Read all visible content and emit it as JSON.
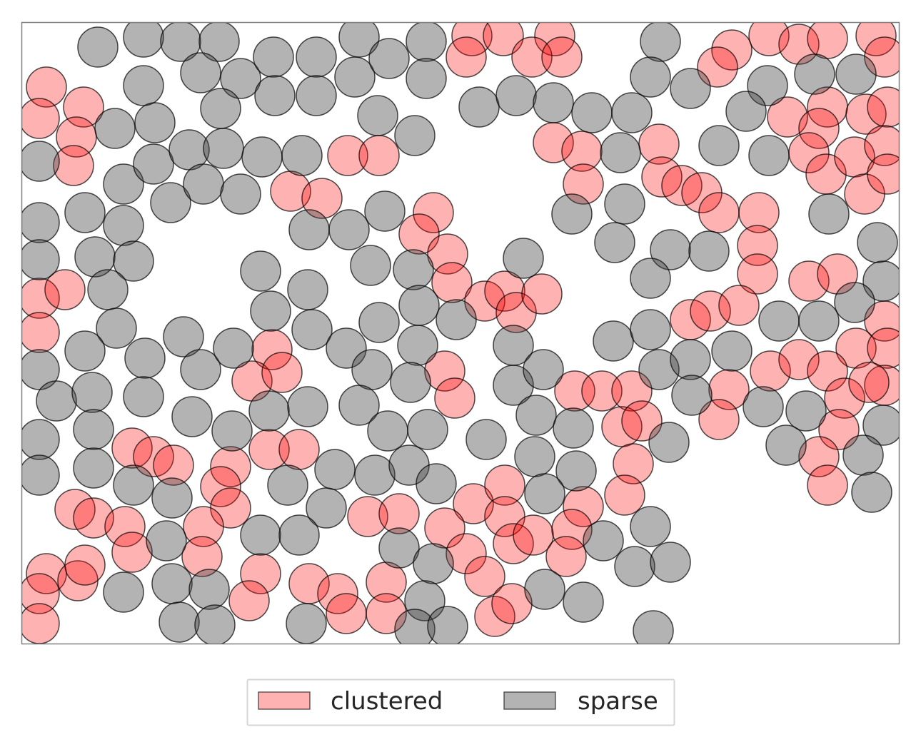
{
  "chart_data": {
    "type": "scatter",
    "xlim": [
      0,
      1228
    ],
    "ylim": [
      0,
      870
    ],
    "y_inverted": true,
    "axes_visible": false,
    "grid": false,
    "marker_radius": 28,
    "legend": {
      "placement": "bottom-center",
      "columns": 2
    },
    "series": [
      {
        "name": "clustered",
        "color": "#ff0000",
        "alpha": 0.3,
        "points": [
          [
            630,
            18
          ],
          [
            674,
            18
          ],
          [
            746,
            18
          ],
          [
            1046,
            18
          ],
          [
            1196,
            18
          ],
          [
            622,
            48
          ],
          [
            714,
            48
          ],
          [
            756,
            48
          ],
          [
            1088,
            30
          ],
          [
            1128,
            22
          ],
          [
            994,
            38
          ],
          [
            974,
            62
          ],
          [
            1208,
            48
          ],
          [
            34,
            90
          ],
          [
            86,
            118
          ],
          [
            24,
            134
          ],
          [
            76,
            160
          ],
          [
            72,
            200
          ],
          [
            1072,
            132
          ],
          [
            1128,
            118
          ],
          [
            1116,
            148
          ],
          [
            1182,
            128
          ],
          [
            1212,
            118
          ],
          [
            1102,
            182
          ],
          [
            1126,
            212
          ],
          [
            1166,
            188
          ],
          [
            1208,
            172
          ],
          [
            1180,
            240
          ],
          [
            1212,
            212
          ],
          [
            456,
            186
          ],
          [
            500,
            186
          ],
          [
            744,
            168
          ],
          [
            784,
            180
          ],
          [
            786,
            226
          ],
          [
            892,
            170
          ],
          [
            896,
            216
          ],
          [
            924,
            228
          ],
          [
            952,
            238
          ],
          [
            976,
            266
          ],
          [
            1032,
            266
          ],
          [
            1030,
            312
          ],
          [
            1030,
            352
          ],
          [
            376,
            236
          ],
          [
            420,
            246
          ],
          [
            576,
            266
          ],
          [
            556,
            296
          ],
          [
            596,
            324
          ],
          [
            602,
            364
          ],
          [
            648,
            390
          ],
          [
            676,
            376
          ],
          [
            692,
            406
          ],
          [
            728,
            380
          ],
          [
            936,
            416
          ],
          [
            964,
            404
          ],
          [
            1004,
            396
          ],
          [
            1102,
            362
          ],
          [
            1142,
            352
          ],
          [
            1208,
            418
          ],
          [
            1168,
            456
          ],
          [
            1212,
            456
          ],
          [
            1208,
            508
          ],
          [
            24,
            386
          ],
          [
            60,
            374
          ],
          [
            24,
            434
          ],
          [
            350,
            458
          ],
          [
            322,
            502
          ],
          [
            364,
            490
          ],
          [
            592,
            488
          ],
          [
            606,
            526
          ],
          [
            1048,
            488
          ],
          [
            1088,
            472
          ],
          [
            1128,
            488
          ],
          [
            1152,
            526
          ],
          [
            1186,
            504
          ],
          [
            990,
            514
          ],
          [
            976,
            556
          ],
          [
            774,
            516
          ],
          [
            812,
            516
          ],
          [
            854,
            516
          ],
          [
            840,
            566
          ],
          [
            868,
            558
          ],
          [
            856,
            618
          ],
          [
            844,
            662
          ],
          [
            1144,
            570
          ],
          [
            1116,
            608
          ],
          [
            1128,
            648
          ],
          [
            154,
            596
          ],
          [
            184,
            608
          ],
          [
            212,
            620
          ],
          [
            292,
            622
          ],
          [
            278,
            650
          ],
          [
            292,
            680
          ],
          [
            346,
            598
          ],
          [
            388,
            598
          ],
          [
            74,
            682
          ],
          [
            100,
            694
          ],
          [
            144,
            706
          ],
          [
            154,
            742
          ],
          [
            254,
            706
          ],
          [
            252,
            748
          ],
          [
            632,
            674
          ],
          [
            676,
            648
          ],
          [
            676,
            692
          ],
          [
            688,
            730
          ],
          [
            716,
            718
          ],
          [
            786,
            678
          ],
          [
            770,
            710
          ],
          [
            762,
            748
          ],
          [
            484,
            692
          ],
          [
            528,
            688
          ],
          [
            592,
            708
          ],
          [
            622,
            744
          ],
          [
            648,
            776
          ],
          [
            34,
            772
          ],
          [
            78,
            782
          ],
          [
            88,
            760
          ],
          [
            24,
            800
          ],
          [
            24,
            842
          ],
          [
            334,
            772
          ],
          [
            318,
            810
          ],
          [
            402,
            786
          ],
          [
            442,
            800
          ],
          [
            454,
            828
          ],
          [
            510,
            784
          ],
          [
            510,
            828
          ],
          [
            662,
            832
          ],
          [
            686,
            814
          ]
        ]
      },
      {
        "name": "sparse",
        "color": "#404040",
        "alpha": 0.4,
        "points": [
          [
            106,
            34
          ],
          [
            170,
            20
          ],
          [
            222,
            26
          ],
          [
            276,
            26
          ],
          [
            472,
            20
          ],
          [
            566,
            26
          ],
          [
            894,
            26
          ],
          [
            250,
            70
          ],
          [
            306,
            78
          ],
          [
            352,
            48
          ],
          [
            412,
            48
          ],
          [
            466,
            76
          ],
          [
            514,
            50
          ],
          [
            566,
            78
          ],
          [
            170,
            88
          ],
          [
            354,
            102
          ],
          [
            412,
            102
          ],
          [
            278,
            120
          ],
          [
            498,
            130
          ],
          [
            550,
            158
          ],
          [
            130,
            148
          ],
          [
            186,
            140
          ],
          [
            24,
            194
          ],
          [
            142,
            226
          ],
          [
            184,
            198
          ],
          [
            234,
            178
          ],
          [
            282,
            176
          ],
          [
            336,
            188
          ],
          [
            392,
            186
          ],
          [
            208,
            252
          ],
          [
            254,
            226
          ],
          [
            306,
            240
          ],
          [
            640,
            118
          ],
          [
            692,
            102
          ],
          [
            744,
            112
          ],
          [
            798,
            126
          ],
          [
            854,
            126
          ],
          [
            880,
            76
          ],
          [
            936,
            92
          ],
          [
            1044,
            88
          ],
          [
            1014,
            124
          ],
          [
            1110,
            72
          ],
          [
            1168,
            72
          ],
          [
            976,
            172
          ],
          [
            1046,
            186
          ],
          [
            838,
            182
          ],
          [
            24,
            280
          ],
          [
            88,
            266
          ],
          [
            142,
            284
          ],
          [
            24,
            332
          ],
          [
            102,
            328
          ],
          [
            156,
            334
          ],
          [
            120,
            374
          ],
          [
            770,
            268
          ],
          [
            844,
            254
          ],
          [
            830,
            308
          ],
          [
            908,
            318
          ],
          [
            962,
            320
          ],
          [
            880,
            358
          ],
          [
            1130,
            268
          ],
          [
            1198,
            308
          ],
          [
            1206,
            362
          ],
          [
            1166,
            392
          ],
          [
            402,
            290
          ],
          [
            458,
            290
          ],
          [
            508,
            264
          ],
          [
            334,
            348
          ],
          [
            400,
            374
          ],
          [
            348,
            404
          ],
          [
            488,
            340
          ],
          [
            548,
            346
          ],
          [
            556,
            396
          ],
          [
            702,
            330
          ],
          [
            608,
            416
          ],
          [
            500,
            420
          ],
          [
            132,
            428
          ],
          [
            24,
            486
          ],
          [
            88,
            460
          ],
          [
            172,
            470
          ],
          [
            226,
            440
          ],
          [
            250,
            486
          ],
          [
            296,
            456
          ],
          [
            406,
            430
          ],
          [
            454,
            456
          ],
          [
            490,
            486
          ],
          [
            554,
            452
          ],
          [
            544,
            504
          ],
          [
            688,
            452
          ],
          [
            688,
            508
          ],
          [
            730,
            486
          ],
          [
            48,
            530
          ],
          [
            98,
            518
          ],
          [
            170,
            524
          ],
          [
            24,
            584
          ],
          [
            100,
            570
          ],
          [
            238,
            552
          ],
          [
            294,
            572
          ],
          [
            346,
            544
          ],
          [
            400,
            538
          ],
          [
            472,
            536
          ],
          [
            512,
            572
          ],
          [
            568,
            570
          ],
          [
            650,
            584
          ],
          [
            720,
            550
          ],
          [
            772,
            568
          ],
          [
            718,
            608
          ],
          [
            776,
            628
          ],
          [
            828,
            446
          ],
          [
            880,
            430
          ],
          [
            892,
            486
          ],
          [
            936,
            472
          ],
          [
            994,
            460
          ],
          [
            938,
            522
          ],
          [
            1060,
            418
          ],
          [
            1116,
            418
          ],
          [
            1038,
            538
          ],
          [
            1098,
            544
          ],
          [
            1070,
            592
          ],
          [
            906,
            588
          ],
          [
            1206,
            564
          ],
          [
            1178,
            606
          ],
          [
            1190,
            658
          ],
          [
            24,
            634
          ],
          [
            100,
            624
          ],
          [
            156,
            648
          ],
          [
            210,
            666
          ],
          [
            438,
            626
          ],
          [
            494,
            634
          ],
          [
            542,
            620
          ],
          [
            580,
            646
          ],
          [
            732,
            660
          ],
          [
            814,
            726
          ],
          [
            880,
            706
          ],
          [
            858,
            762
          ],
          [
            908,
            756
          ],
          [
            426,
            680
          ],
          [
            372,
            648
          ],
          [
            528,
            736
          ],
          [
            576,
            758
          ],
          [
            202,
            726
          ],
          [
            334,
            718
          ],
          [
            388,
            718
          ],
          [
            210,
            786
          ],
          [
            262,
            794
          ],
          [
            142,
            798
          ],
          [
            220,
            840
          ],
          [
            270,
            844
          ],
          [
            398,
            842
          ],
          [
            564,
            810
          ],
          [
            550,
            850
          ],
          [
            596,
            846
          ],
          [
            732,
            794
          ],
          [
            786,
            812
          ],
          [
            884,
            852
          ]
        ]
      }
    ]
  }
}
